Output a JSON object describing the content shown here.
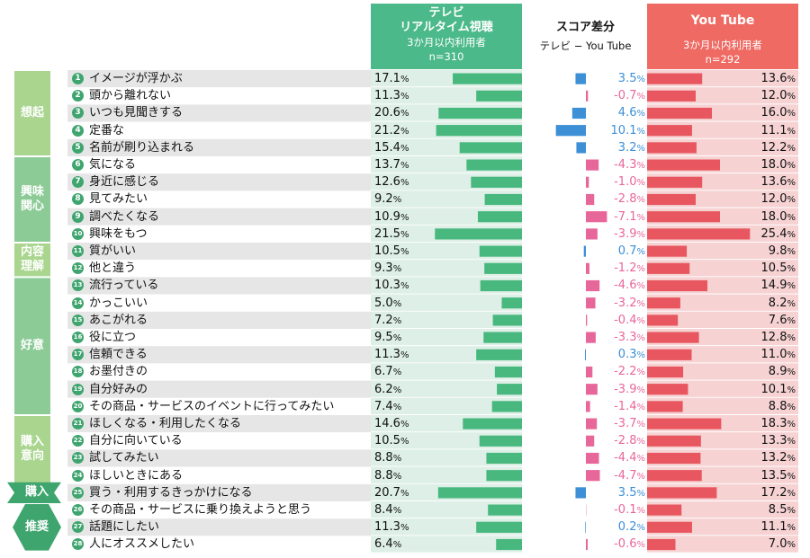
{
  "header": {
    "tv_title_line1": "テレビ",
    "tv_title_line2": "リアルタイム視聴",
    "tv_sub": "3か月以内利用者",
    "tv_n": "n=310",
    "diff_title": "スコア差分",
    "diff_sub": "テレビ − You Tube",
    "yt_title": "You Tube",
    "yt_sub": "3か月以内利用者",
    "yt_n": "n=292"
  },
  "colors": {
    "tv_header": "#4CB98A",
    "yt_header": "#EE6A63",
    "tv_bar": "#48B87F",
    "tv_bg": "#DDEFE6",
    "yt_bar": "#E8575F",
    "yt_bg": "#F6D2D3",
    "diff_pos": "#3D8FD6",
    "diff_neg": "#E8679A",
    "group": "#A9D58E",
    "group_alt": "#8CCB96",
    "row_alt": "#E6E6E6"
  },
  "groups": [
    {
      "label": [
        "想起"
      ],
      "start": 0,
      "count": 5,
      "shape": "rect"
    },
    {
      "label": [
        "興味",
        "関心"
      ],
      "start": 5,
      "count": 5,
      "shape": "rect"
    },
    {
      "label": [
        "内容",
        "理解"
      ],
      "start": 10,
      "count": 2,
      "shape": "rect"
    },
    {
      "label": [
        "好意"
      ],
      "start": 12,
      "count": 8,
      "shape": "rect"
    },
    {
      "label": [
        "購入",
        "意向"
      ],
      "start": 20,
      "count": 4,
      "shape": "rect"
    },
    {
      "label": [
        "購入"
      ],
      "start": 24,
      "count": 1,
      "shape": "arrow"
    },
    {
      "label": [
        "推奨"
      ],
      "start": 25,
      "count": 3,
      "shape": "hexagon"
    }
  ],
  "chart_data": {
    "type": "bar",
    "unit": "%",
    "series": [
      {
        "name": "テレビ リアルタイム視聴 3か月以内利用者 n=310",
        "key": "tv"
      },
      {
        "name": "スコア差分 テレビ − You Tube",
        "key": "diff"
      },
      {
        "name": "You Tube 3か月以内利用者 n=292",
        "key": "yt"
      }
    ],
    "rows": [
      {
        "no": "1",
        "label": "イメージが浮かぶ",
        "tv": 17.1,
        "diff": 3.5,
        "yt": 13.6
      },
      {
        "no": "2",
        "label": "頭から離れない",
        "tv": 11.3,
        "diff": -0.7,
        "yt": 12.0
      },
      {
        "no": "3",
        "label": "いつも見聞きする",
        "tv": 20.6,
        "diff": 4.6,
        "yt": 16.0
      },
      {
        "no": "4",
        "label": "定番な",
        "tv": 21.2,
        "diff": 10.1,
        "yt": 11.1
      },
      {
        "no": "5",
        "label": "名前が刷り込まれる",
        "tv": 15.4,
        "diff": 3.2,
        "yt": 12.2
      },
      {
        "no": "6",
        "label": "気になる",
        "tv": 13.7,
        "diff": -4.3,
        "yt": 18.0
      },
      {
        "no": "7",
        "label": "身近に感じる",
        "tv": 12.6,
        "diff": -1.0,
        "yt": 13.6
      },
      {
        "no": "8",
        "label": "見てみたい",
        "tv": 9.2,
        "diff": -2.8,
        "yt": 12.0
      },
      {
        "no": "9",
        "label": "調べたくなる",
        "tv": 10.9,
        "diff": -7.1,
        "yt": 18.0
      },
      {
        "no": "10",
        "label": "興味をもつ",
        "tv": 21.5,
        "diff": -3.9,
        "yt": 25.4
      },
      {
        "no": "11",
        "label": "質がいい",
        "tv": 10.5,
        "diff": 0.7,
        "yt": 9.8
      },
      {
        "no": "12",
        "label": "他と違う",
        "tv": 9.3,
        "diff": -1.2,
        "yt": 10.5
      },
      {
        "no": "13",
        "label": "流行っている",
        "tv": 10.3,
        "diff": -4.6,
        "yt": 14.9
      },
      {
        "no": "14",
        "label": "かっこいい",
        "tv": 5.0,
        "diff": -3.2,
        "yt": 8.2
      },
      {
        "no": "15",
        "label": "あこがれる",
        "tv": 7.2,
        "diff": -0.4,
        "yt": 7.6
      },
      {
        "no": "16",
        "label": "役に立つ",
        "tv": 9.5,
        "diff": -3.3,
        "yt": 12.8
      },
      {
        "no": "17",
        "label": "信頼できる",
        "tv": 11.3,
        "diff": 0.3,
        "yt": 11.0
      },
      {
        "no": "18",
        "label": "お墨付きの",
        "tv": 6.7,
        "diff": -2.2,
        "yt": 8.9
      },
      {
        "no": "19",
        "label": "自分好みの",
        "tv": 6.2,
        "diff": -3.9,
        "yt": 10.1
      },
      {
        "no": "20",
        "label": "その商品・サービスのイベントに行ってみたい",
        "tv": 7.4,
        "diff": -1.4,
        "yt": 8.8
      },
      {
        "no": "21",
        "label": "ほしくなる・利用したくなる",
        "tv": 14.6,
        "diff": -3.7,
        "yt": 18.3
      },
      {
        "no": "22",
        "label": "自分に向いている",
        "tv": 10.5,
        "diff": -2.8,
        "yt": 13.3
      },
      {
        "no": "23",
        "label": "試してみたい",
        "tv": 8.8,
        "diff": -4.4,
        "yt": 13.2
      },
      {
        "no": "24",
        "label": "ほしいときにある",
        "tv": 8.8,
        "diff": -4.7,
        "yt": 13.5
      },
      {
        "no": "25",
        "label": "買う・利用するきっかけになる",
        "tv": 20.7,
        "diff": 3.5,
        "yt": 17.2
      },
      {
        "no": "26",
        "label": "その商品・サービスに乗り換えようと思う",
        "tv": 8.4,
        "diff": -0.1,
        "yt": 8.5
      },
      {
        "no": "27",
        "label": "話題にしたい",
        "tv": 11.3,
        "diff": 0.2,
        "yt": 11.1
      },
      {
        "no": "28",
        "label": "人にオススメしたい",
        "tv": 6.4,
        "diff": -0.6,
        "yt": 7.0
      }
    ]
  }
}
